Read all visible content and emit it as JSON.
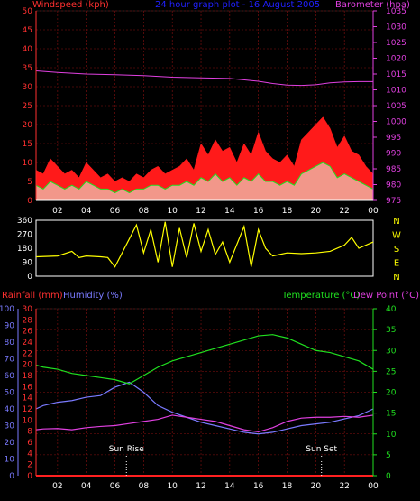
{
  "header": {
    "wind_label": "Windspeed (kph)",
    "title": "24 hour graph plot - 16 August 2005",
    "baro_label": "Barometer (hpa)"
  },
  "colors": {
    "wind_gust": "#ff1a1a",
    "wind_avg": "#20e020",
    "wind_low": "#e8ffe8",
    "barometer": "#e040e0",
    "direction": "#ffff00",
    "temperature": "#20e020",
    "humidity": "#7a7aff",
    "dewpoint": "#e040e0",
    "rain": "#ff2020",
    "grid": "#8a1010",
    "axis_left": "#ff3030",
    "axis_right": "#e040e0",
    "title": "#2020ff",
    "rain_label": "#ff3030",
    "hum_label": "#7a7aff",
    "temp_label": "#20e020",
    "dew_label": "#e040e0"
  },
  "panel_wind": {
    "hour_ticks": [
      "02",
      "04",
      "06",
      "08",
      "10",
      "12",
      "14",
      "16",
      "18",
      "20",
      "22",
      "00"
    ],
    "wind_ticks": [
      "0",
      "5",
      "10",
      "15",
      "20",
      "25",
      "30",
      "35",
      "40",
      "45",
      "50"
    ],
    "baro_ticks": [
      "975",
      "980",
      "985",
      "990",
      "995",
      "1000",
      "1005",
      "1010",
      "1015",
      "1020",
      "1025",
      "1030",
      "1035"
    ]
  },
  "panel_direction": {
    "deg_ticks": [
      "360",
      "270",
      "180",
      "90",
      "0"
    ],
    "compass": [
      "N",
      "W",
      "S",
      "E",
      "N"
    ]
  },
  "panel_temp": {
    "rain_label": "Rainfall (mm)",
    "hum_label": "Humidity (%)",
    "temp_label": "Temperature (°C)",
    "dew_label": "Dew Point (°C)",
    "hum_ticks": [
      "100",
      "90",
      "80",
      "70",
      "60",
      "50",
      "40",
      "30",
      "20",
      "10",
      "0"
    ],
    "rain_ticks": [
      "30",
      "28",
      "26",
      "24",
      "22",
      "20",
      "18",
      "16",
      "14",
      "12",
      "10",
      "8",
      "6",
      "4",
      "2",
      "0"
    ],
    "temp_ticks": [
      "40",
      "35",
      "30",
      "25",
      "20",
      "15",
      "10",
      "5",
      "0"
    ],
    "hour_ticks": [
      "02",
      "04",
      "06",
      "08",
      "10",
      "12",
      "14",
      "16",
      "18",
      "20",
      "22",
      "00"
    ],
    "sunrise_label": "Sun Rise",
    "sunset_label": "Sun Set"
  },
  "chart_data": [
    {
      "type": "area",
      "title": "24 hour graph plot - 16 August 2005",
      "ylabel": "Windspeed (kph)",
      "y2label": "Barometer (hpa)",
      "x_unit": "hour",
      "xlim": [
        0.5,
        24
      ],
      "ylim": [
        0,
        50
      ],
      "y2lim": [
        975,
        1035
      ],
      "grid": true,
      "series": [
        {
          "name": "Gust",
          "x": [
            0.5,
            1,
            1.5,
            2,
            2.5,
            3,
            3.5,
            4,
            4.5,
            5,
            5.5,
            6,
            6.5,
            7,
            7.5,
            8,
            8.5,
            9,
            9.5,
            10,
            10.5,
            11,
            11.5,
            12,
            12.5,
            13,
            13.5,
            14,
            14.5,
            15,
            15.5,
            16,
            16.5,
            17,
            17.5,
            18,
            18.5,
            19,
            19.5,
            20,
            20.5,
            21,
            21.5,
            22,
            22.5,
            23,
            23.5,
            24
          ],
          "values": [
            8,
            7,
            11,
            9,
            7,
            8,
            6,
            10,
            8,
            6,
            7,
            5,
            6,
            5,
            7,
            6,
            8,
            9,
            7,
            8,
            9,
            11,
            8,
            15,
            12,
            16,
            13,
            14,
            10,
            15,
            12,
            18,
            13,
            11,
            10,
            12,
            9,
            16,
            18,
            20,
            22,
            19,
            14,
            17,
            13,
            12,
            9,
            7
          ]
        },
        {
          "name": "Average",
          "x": [
            0.5,
            1,
            1.5,
            2,
            2.5,
            3,
            3.5,
            4,
            4.5,
            5,
            5.5,
            6,
            6.5,
            7,
            7.5,
            8,
            8.5,
            9,
            9.5,
            10,
            10.5,
            11,
            11.5,
            12,
            12.5,
            13,
            13.5,
            14,
            14.5,
            15,
            15.5,
            16,
            16.5,
            17,
            17.5,
            18,
            18.5,
            19,
            19.5,
            20,
            20.5,
            21,
            21.5,
            22,
            22.5,
            23,
            23.5,
            24
          ],
          "values": [
            4,
            3,
            5,
            4,
            3,
            4,
            3,
            5,
            4,
            3,
            3,
            2,
            3,
            2,
            3,
            3,
            4,
            4,
            3,
            4,
            4,
            5,
            4,
            6,
            5,
            7,
            5,
            6,
            4,
            6,
            5,
            7,
            5,
            5,
            4,
            5,
            4,
            7,
            8,
            9,
            10,
            9,
            6,
            7,
            6,
            5,
            4,
            3
          ]
        },
        {
          "name": "Barometer",
          "axis": "y2",
          "x": [
            0.5,
            2,
            4,
            6,
            8,
            10,
            12,
            14,
            16,
            17,
            18,
            19,
            20,
            21,
            22,
            23,
            24
          ],
          "values": [
            1016,
            1015.5,
            1015,
            1014.8,
            1014.5,
            1014,
            1013.8,
            1013.6,
            1012.7,
            1012,
            1011.5,
            1011.4,
            1011.6,
            1012.2,
            1012.5,
            1012.6,
            1012.6
          ]
        }
      ]
    },
    {
      "type": "line",
      "ylabel": "Wind direction (deg)",
      "x_unit": "hour",
      "xlim": [
        0.5,
        24
      ],
      "ylim": [
        0,
        360
      ],
      "series": [
        {
          "name": "Direction",
          "x": [
            0.5,
            2,
            3,
            3.5,
            4,
            5,
            5.5,
            6,
            7,
            7.5,
            8,
            8.5,
            9,
            9.5,
            10,
            10.5,
            11,
            11.5,
            12,
            12.5,
            13,
            13.5,
            14,
            15,
            15.5,
            16,
            16.5,
            17,
            17.5,
            18,
            19,
            20,
            20.5,
            21,
            22,
            22.5,
            23,
            24
          ],
          "values": [
            125,
            130,
            160,
            120,
            130,
            125,
            120,
            60,
            240,
            330,
            150,
            300,
            90,
            350,
            60,
            310,
            120,
            340,
            160,
            300,
            140,
            220,
            90,
            320,
            60,
            300,
            180,
            130,
            140,
            150,
            145,
            150,
            155,
            160,
            200,
            250,
            180,
            220
          ]
        }
      ]
    },
    {
      "type": "line",
      "x_unit": "hour",
      "xlim": [
        0.5,
        24
      ],
      "ylabel": "Temperature (°C)",
      "ylim": [
        0,
        40
      ],
      "annotations": [
        {
          "label": "Sun Rise",
          "x": 6.8
        },
        {
          "label": "Sun Set",
          "x": 20.4
        }
      ],
      "series": [
        {
          "name": "Temperature",
          "axis": "temp",
          "x": [
            0.5,
            1,
            2,
            3,
            4,
            5,
            6,
            7,
            8,
            9,
            10,
            11,
            12,
            13,
            14,
            15,
            16,
            17,
            18,
            19,
            20,
            21,
            22,
            23,
            24
          ],
          "values": [
            26.5,
            26,
            25.5,
            24.5,
            24,
            23.5,
            23,
            22,
            24,
            26,
            27.5,
            28.5,
            29.5,
            30.5,
            31.5,
            32.5,
            33.5,
            33.8,
            33,
            31.5,
            30,
            29.5,
            28.5,
            27.5,
            25.5
          ]
        },
        {
          "name": "Dew Point",
          "axis": "temp",
          "x": [
            0.5,
            1,
            2,
            3,
            4,
            5,
            6,
            7,
            8,
            9,
            10,
            11,
            12,
            13,
            14,
            15,
            16,
            17,
            18,
            19,
            20,
            21,
            22,
            23,
            24
          ],
          "values": [
            11,
            11.2,
            11.3,
            11,
            11.5,
            11.8,
            12,
            12.5,
            13,
            13.5,
            14.5,
            14,
            13.5,
            13,
            12,
            11,
            10.5,
            11.5,
            13,
            13.8,
            14,
            14,
            14.2,
            14,
            14.5
          ]
        },
        {
          "name": "Humidity",
          "axis": "hum",
          "x": [
            0.5,
            1,
            2,
            3,
            4,
            5,
            6,
            7,
            8,
            9,
            10,
            11,
            12,
            13,
            14,
            15,
            16,
            17,
            18,
            19,
            20,
            21,
            22,
            23,
            24
          ],
          "values": [
            40,
            42,
            44,
            45,
            47,
            48,
            53,
            56,
            50,
            42,
            38,
            35,
            32,
            30,
            28,
            26,
            25,
            26,
            28,
            30,
            31,
            32,
            34,
            36,
            40
          ]
        },
        {
          "name": "Rainfall",
          "axis": "rain",
          "x": [
            0.5,
            24
          ],
          "values": [
            0,
            0
          ]
        }
      ]
    }
  ]
}
